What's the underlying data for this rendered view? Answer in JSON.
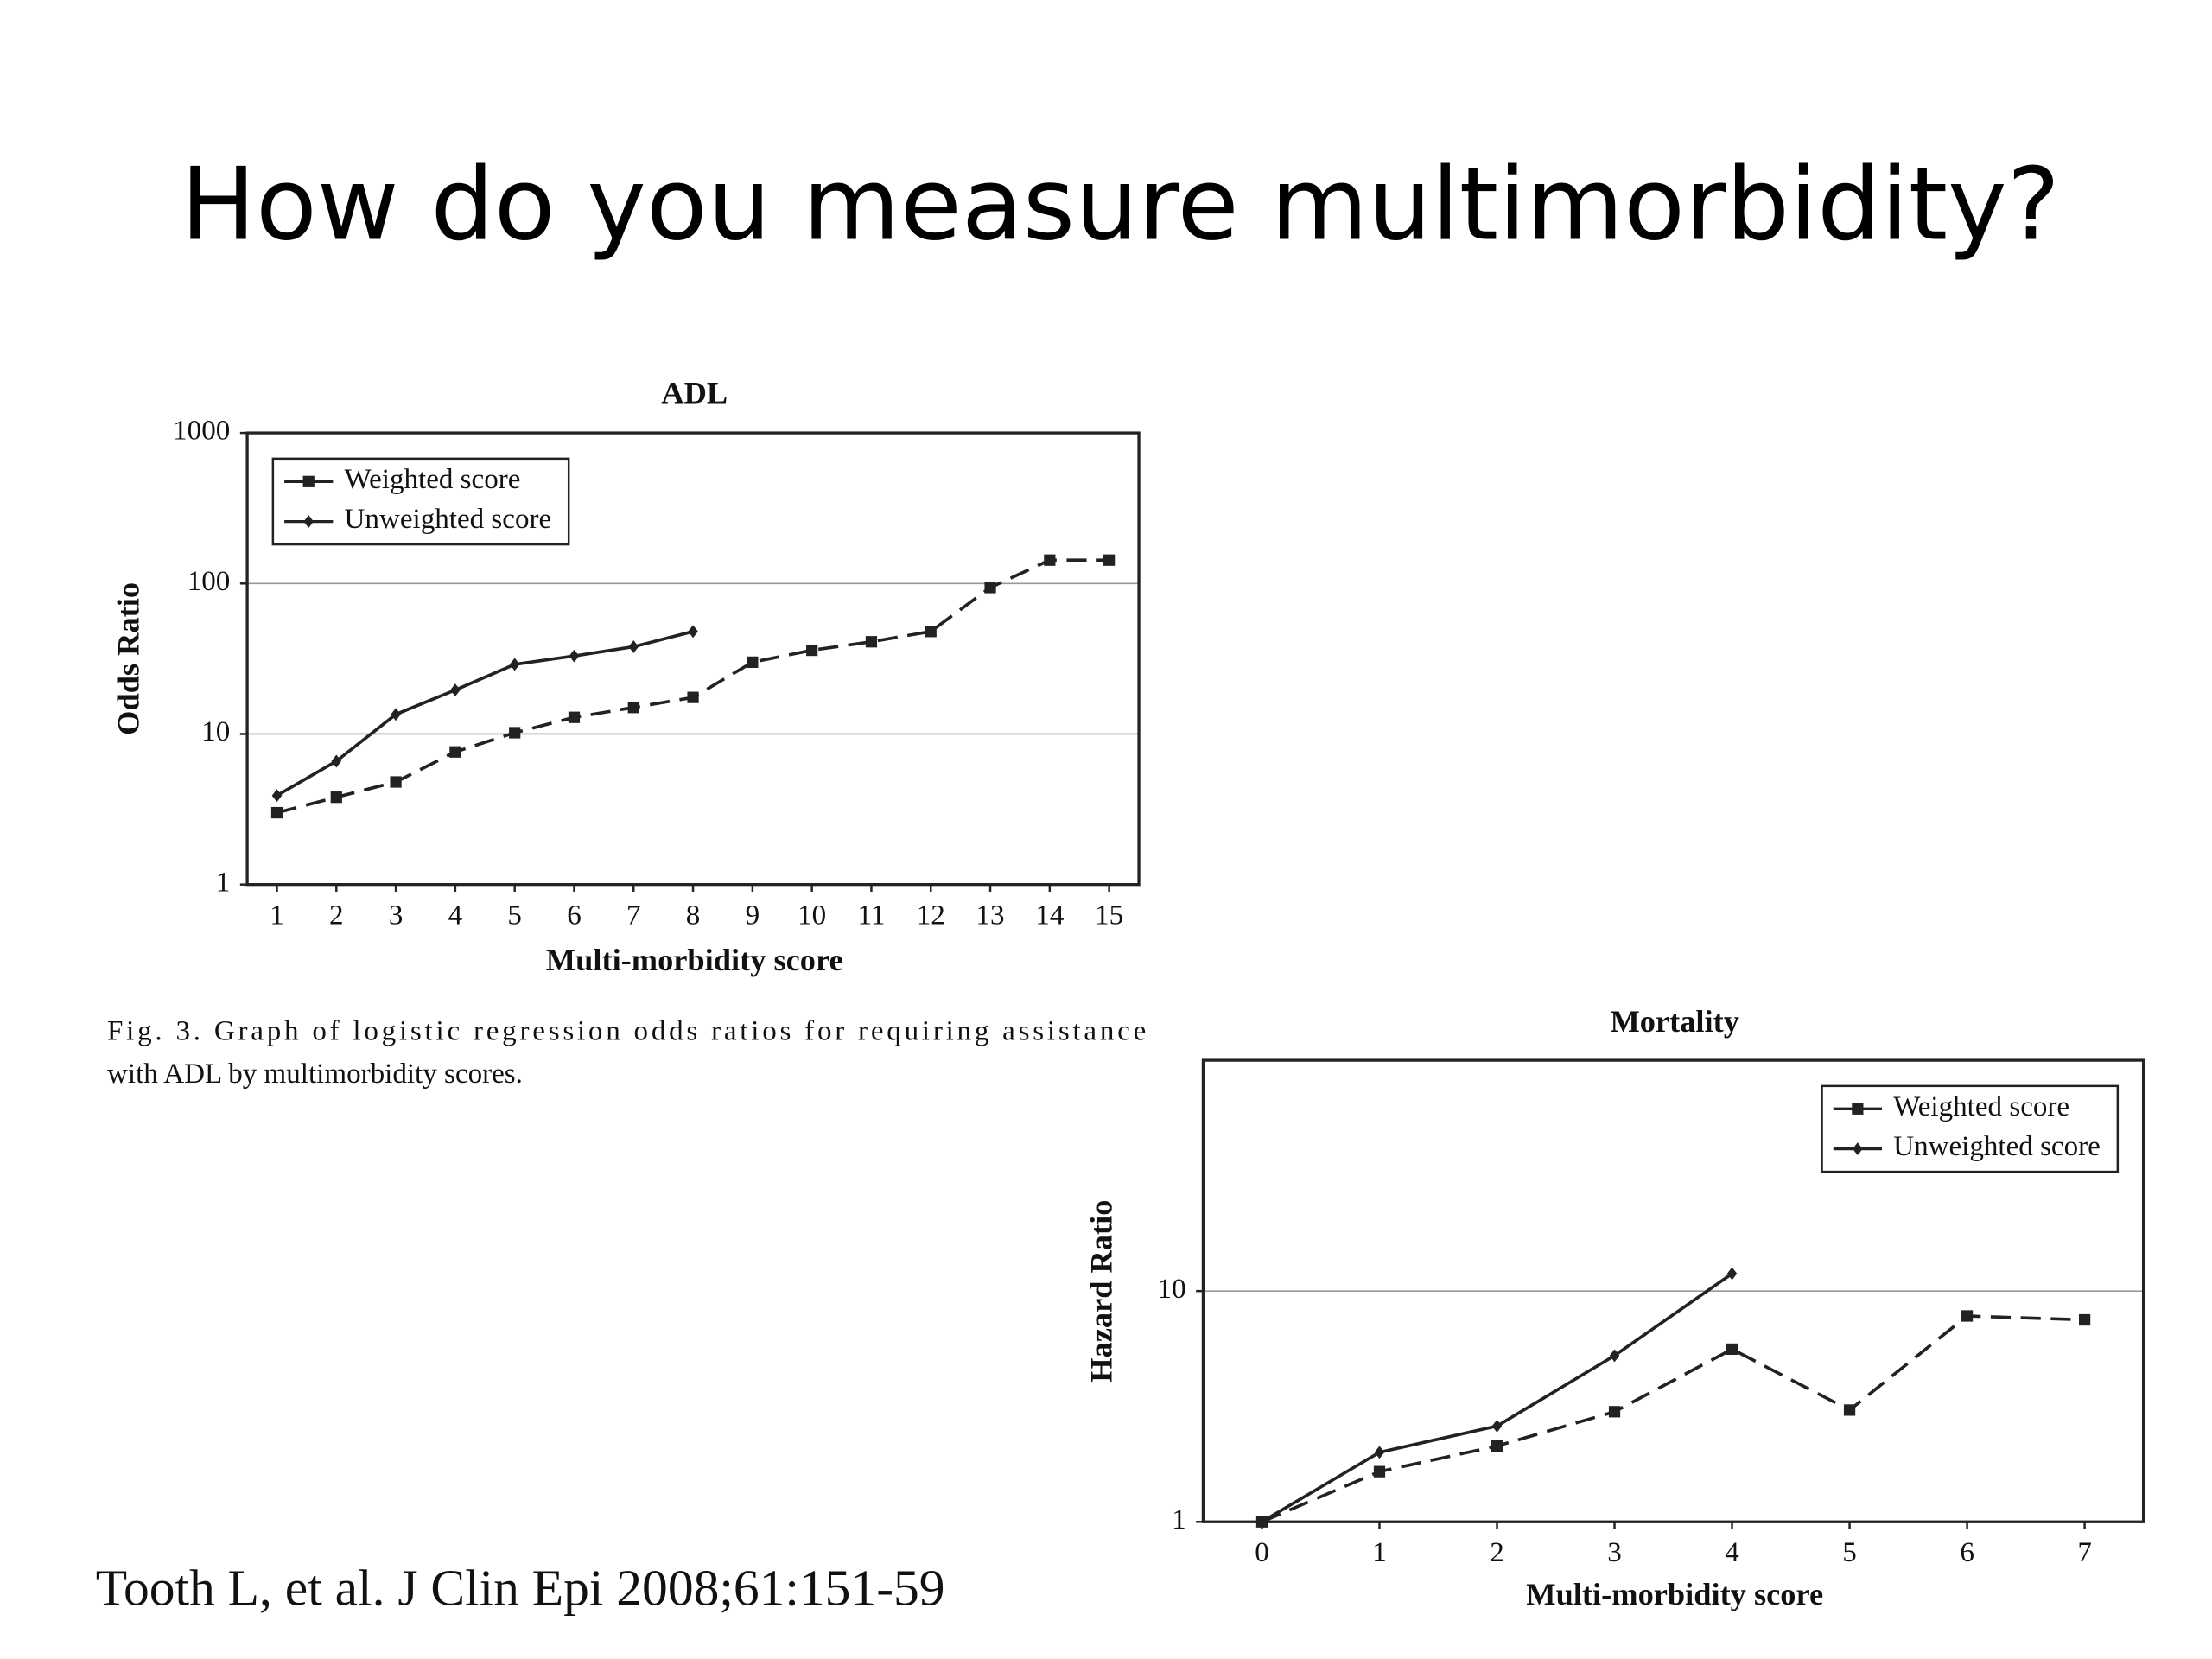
{
  "title": "How do you measure multimorbidity?",
  "caption": [
    "Fig. 3. Graph of logistic regression odds ratios for requiring assistance",
    "with ADL by multimorbidity scores."
  ],
  "citation": "Tooth L, et al. J Clin Epi 2008;61:151-59",
  "chart_data": [
    {
      "type": "line",
      "title": "ADL",
      "xlabel": "Multi-morbidity score",
      "ylabel": "Odds Ratio",
      "yscale": "log",
      "grid": true,
      "legend": "upper left",
      "x": [
        1,
        2,
        3,
        4,
        5,
        6,
        7,
        8,
        9,
        10,
        11,
        12,
        13,
        14,
        15
      ],
      "xlim": [
        0.5,
        15.5
      ],
      "xticks": [
        1,
        2,
        3,
        4,
        5,
        6,
        7,
        8,
        9,
        10,
        11,
        12,
        13,
        14,
        15
      ],
      "ylim": [
        1,
        1000
      ],
      "yticks": [
        1,
        10,
        100,
        1000
      ],
      "series": [
        {
          "name": "Weighted score",
          "color": "#222",
          "marker": "square",
          "linestyle": "dashed",
          "values": [
            3.0,
            3.8,
            4.8,
            7.6,
            10.2,
            12.9,
            15,
            17.5,
            30,
            36,
            41,
            48,
            94,
            143,
            143
          ]
        },
        {
          "name": "Unweighted score",
          "color": "#222",
          "marker": "diamond",
          "linestyle": "solid",
          "values": [
            3.9,
            6.6,
            13.5,
            19.6,
            29,
            33,
            38,
            48,
            null,
            null,
            null,
            null,
            null,
            null,
            null
          ]
        }
      ]
    },
    {
      "type": "line",
      "title": "Mortality",
      "xlabel": "Multi-morbidity score",
      "ylabel": "Hazard Ratio",
      "yscale": "log",
      "grid": true,
      "legend": "upper right",
      "x": [
        0,
        1,
        2,
        3,
        4,
        5,
        6,
        7
      ],
      "xlim": [
        -0.5,
        7.5
      ],
      "xticks": [
        0,
        1,
        2,
        3,
        4,
        5,
        6,
        7
      ],
      "ylim": [
        1,
        100
      ],
      "yticks": [
        1,
        10
      ],
      "series": [
        {
          "name": "Weighted score",
          "color": "#222",
          "marker": "square",
          "linestyle": "dashed",
          "values": [
            1,
            1.65,
            2.13,
            3.0,
            5.6,
            3.05,
            7.8,
            7.5
          ]
        },
        {
          "name": "Unweighted score",
          "color": "#222",
          "marker": "diamond",
          "linestyle": "solid",
          "values": [
            1,
            2.0,
            2.6,
            5.25,
            11.9,
            null,
            null,
            null
          ]
        }
      ]
    }
  ]
}
